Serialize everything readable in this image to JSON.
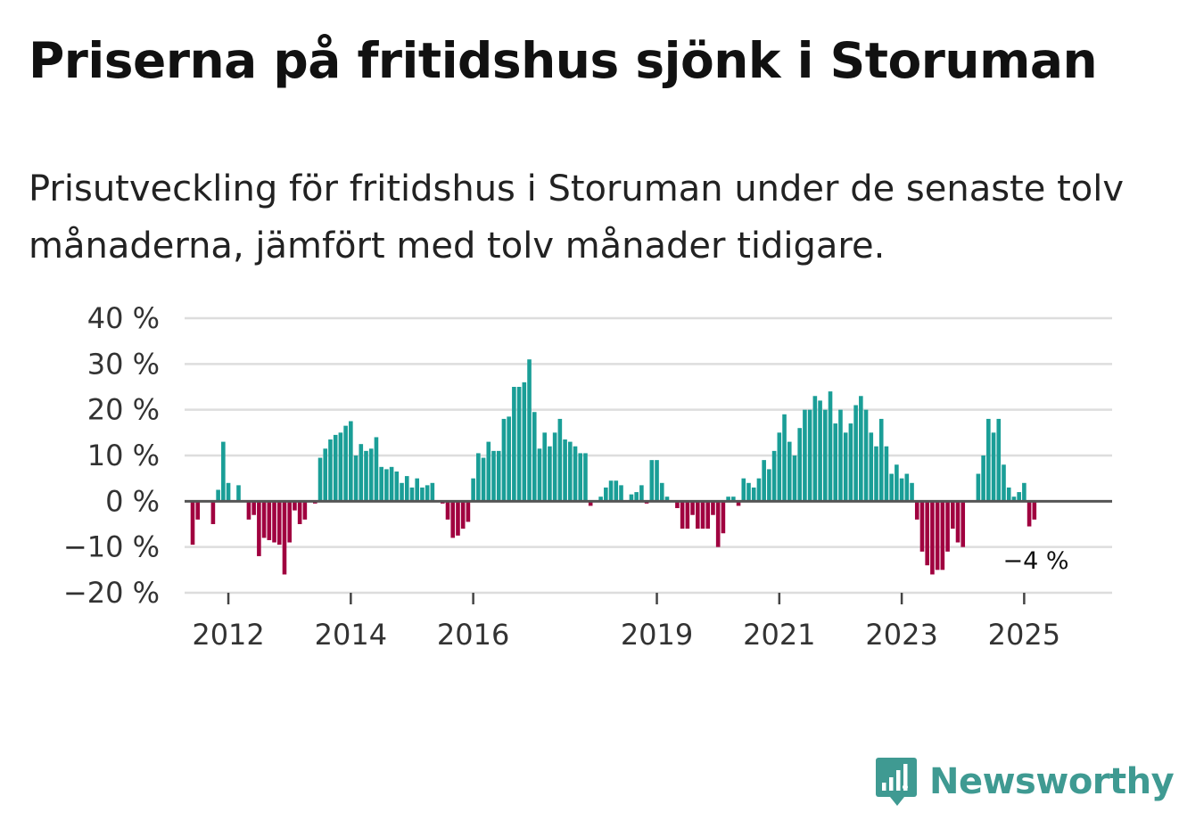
{
  "title": "Priserna på fritidshus sjönk i Storuman",
  "subtitle": "Prisutveckling för fritidshus i Storuman under de senaste tolv månaderna, jämfört med tolv månader tidigare.",
  "brand": {
    "name": "Newsworthy",
    "icon": "newsworthy-logo-icon",
    "color": "#3f9a92"
  },
  "colors": {
    "positive": "#1a9e97",
    "negative": "#a0003f",
    "grid": "#dddddd",
    "zero_line": "#555555"
  },
  "chart_data": {
    "type": "bar",
    "title": "Priserna på fritidshus sjönk i Storuman",
    "ylabel": "",
    "xlabel": "",
    "ylim": [
      -20,
      40
    ],
    "yticks": [
      40,
      30,
      20,
      10,
      0,
      -10,
      -20
    ],
    "ytick_labels": [
      "40 %",
      "30 %",
      "20 %",
      "10 %",
      "0 %",
      "−10 %",
      "−20 %"
    ],
    "x_start": {
      "year": 2011,
      "month": 5
    },
    "xtick_labels": [
      "2012",
      "2014",
      "2016",
      "2019",
      "2021",
      "2023",
      "2025"
    ],
    "xtick_years": [
      2012,
      2014,
      2016,
      2019,
      2021,
      2023,
      2025
    ],
    "end_label": "−4 %",
    "values": [
      0,
      -9.5,
      -4,
      0,
      0,
      -5,
      2.5,
      13,
      4,
      0,
      3.5,
      0,
      -4,
      -3,
      -12,
      -8,
      -8.5,
      -9,
      -9.5,
      -16,
      -9,
      -2,
      -5,
      -4,
      0,
      -0.5,
      9.5,
      11.5,
      13.5,
      14.5,
      15,
      16.5,
      17.5,
      10,
      12.5,
      11,
      11.5,
      14,
      7.5,
      7,
      7.5,
      6.5,
      4,
      5.5,
      3,
      5,
      3,
      3.5,
      4,
      0,
      -0.5,
      -4,
      -8,
      -7.5,
      -6,
      -4.5,
      5,
      10.5,
      9.5,
      13,
      11,
      11,
      18,
      18.5,
      25,
      25,
      26,
      31,
      19.5,
      11.5,
      15,
      12,
      15,
      18,
      13.5,
      13,
      12,
      10.5,
      10.5,
      -1,
      0,
      1,
      3,
      4.5,
      4.5,
      3.5,
      0,
      1.5,
      2,
      3.5,
      -0.5,
      9,
      9,
      4,
      1,
      0,
      -1.5,
      -6,
      -6,
      -3,
      -6,
      -6,
      -6,
      -3,
      -10,
      -7,
      1,
      1,
      -1,
      5,
      4,
      3,
      5,
      9,
      7,
      11,
      15,
      19,
      13,
      10,
      16,
      20,
      20,
      23,
      22,
      20,
      24,
      17,
      20,
      15,
      17,
      21,
      23,
      20,
      15,
      12,
      18,
      12,
      6,
      8,
      5,
      6,
      4,
      -4,
      -11,
      -14,
      -16,
      -15,
      -15,
      -11,
      -6,
      -9,
      -10,
      0,
      0,
      6,
      10,
      18,
      15,
      18,
      8,
      3,
      1,
      2,
      4,
      -5.5,
      -4
    ]
  }
}
